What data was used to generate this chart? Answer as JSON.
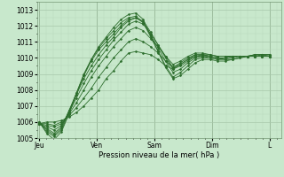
{
  "xlabel": "Pression niveau de la mer( hPa )",
  "bg_color": "#c8e8cc",
  "grid_major_color": "#a8c8aa",
  "grid_minor_color": "#b8d8bb",
  "line_color": "#2d6e2d",
  "marker_color": "#2d6e2d",
  "ylim": [
    1005.0,
    1013.5
  ],
  "yticks": [
    1005,
    1006,
    1007,
    1008,
    1009,
    1010,
    1011,
    1012,
    1013
  ],
  "day_labels": [
    "Jeu",
    "Ven",
    "Sam",
    "Dim",
    "L"
  ],
  "day_positions": [
    0,
    0.25,
    0.5,
    0.75,
    1.0
  ],
  "series": [
    [
      1005.9,
      1006.0,
      1006.0,
      1006.1,
      1006.3,
      1006.6,
      1007.0,
      1007.5,
      1008.0,
      1008.7,
      1009.2,
      1009.8,
      1010.3,
      1010.4,
      1010.3,
      1010.2,
      1009.9,
      1009.5,
      1009.3,
      1009.6,
      1009.9,
      1010.1,
      1010.1,
      1010.0,
      1009.9,
      1010.0,
      1010.1,
      1010.1,
      1010.1,
      1010.1,
      1010.1,
      1010.1
    ],
    [
      1005.9,
      1005.9,
      1005.8,
      1006.0,
      1006.4,
      1006.9,
      1007.5,
      1008.1,
      1008.8,
      1009.4,
      1010.0,
      1010.5,
      1011.0,
      1011.2,
      1011.0,
      1010.7,
      1010.3,
      1009.8,
      1009.4,
      1009.7,
      1010.0,
      1010.2,
      1010.2,
      1010.1,
      1010.0,
      1010.0,
      1010.1,
      1010.1,
      1010.1,
      1010.1,
      1010.1,
      1010.1
    ],
    [
      1005.9,
      1005.8,
      1005.7,
      1005.9,
      1006.5,
      1007.2,
      1008.0,
      1008.8,
      1009.5,
      1010.1,
      1010.7,
      1011.2,
      1011.7,
      1011.9,
      1011.7,
      1011.2,
      1010.7,
      1010.1,
      1009.6,
      1009.8,
      1010.1,
      1010.3,
      1010.3,
      1010.2,
      1010.1,
      1010.1,
      1010.1,
      1010.1,
      1010.1,
      1010.1,
      1010.1,
      1010.1
    ],
    [
      1005.9,
      1005.7,
      1005.5,
      1005.8,
      1006.6,
      1007.5,
      1008.4,
      1009.2,
      1009.9,
      1010.5,
      1011.1,
      1011.6,
      1012.1,
      1012.3,
      1012.1,
      1011.5,
      1010.8,
      1010.1,
      1009.4,
      1009.6,
      1009.9,
      1010.2,
      1010.2,
      1010.2,
      1010.1,
      1010.1,
      1010.1,
      1010.1,
      1010.1,
      1010.1,
      1010.1,
      1010.1
    ],
    [
      1005.9,
      1005.6,
      1005.3,
      1005.7,
      1006.7,
      1007.7,
      1008.7,
      1009.5,
      1010.2,
      1010.8,
      1011.3,
      1011.9,
      1012.3,
      1012.5,
      1012.3,
      1011.6,
      1010.8,
      1010.0,
      1009.3,
      1009.5,
      1009.8,
      1010.1,
      1010.2,
      1010.1,
      1010.0,
      1010.0,
      1010.1,
      1010.1,
      1010.1,
      1010.2,
      1010.2,
      1010.1
    ],
    [
      1006.0,
      1005.5,
      1005.2,
      1005.6,
      1006.7,
      1007.8,
      1008.9,
      1009.8,
      1010.5,
      1011.0,
      1011.5,
      1012.0,
      1012.4,
      1012.5,
      1012.2,
      1011.4,
      1010.6,
      1009.8,
      1009.1,
      1009.3,
      1009.7,
      1010.0,
      1010.1,
      1010.1,
      1010.0,
      1009.9,
      1010.0,
      1010.1,
      1010.1,
      1010.2,
      1010.2,
      1010.2
    ],
    [
      1006.0,
      1005.4,
      1005.1,
      1005.5,
      1006.6,
      1007.8,
      1009.0,
      1009.9,
      1010.6,
      1011.2,
      1011.7,
      1012.2,
      1012.5,
      1012.6,
      1012.2,
      1011.3,
      1010.4,
      1009.5,
      1008.8,
      1009.1,
      1009.5,
      1009.9,
      1010.0,
      1010.0,
      1009.9,
      1009.9,
      1009.9,
      1010.0,
      1010.1,
      1010.2,
      1010.2,
      1010.2
    ],
    [
      1006.0,
      1005.3,
      1004.9,
      1005.4,
      1006.5,
      1007.7,
      1008.9,
      1009.9,
      1010.7,
      1011.3,
      1011.9,
      1012.4,
      1012.7,
      1012.8,
      1012.4,
      1011.4,
      1010.4,
      1009.4,
      1008.7,
      1008.9,
      1009.3,
      1009.7,
      1009.9,
      1009.9,
      1009.8,
      1009.8,
      1009.9,
      1010.0,
      1010.1,
      1010.1,
      1010.2,
      1010.2
    ]
  ]
}
